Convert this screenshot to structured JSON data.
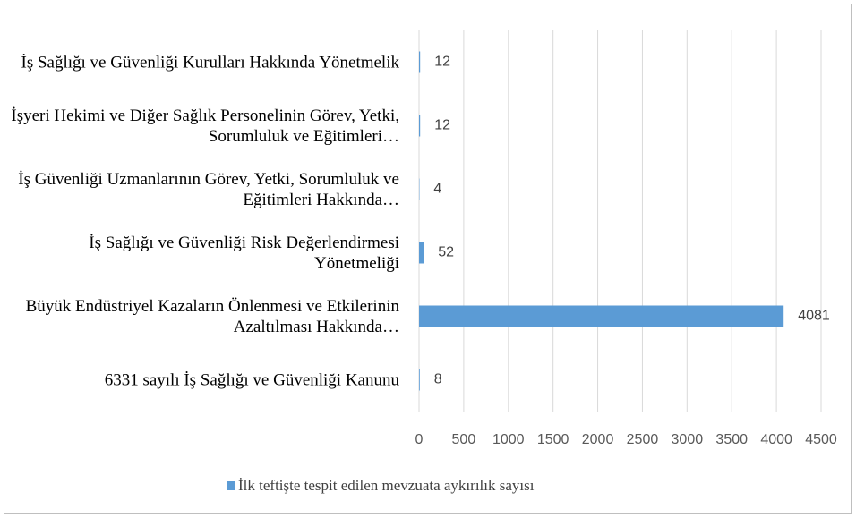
{
  "chart_data": {
    "type": "barh",
    "categories": [
      "İş Sağlığı ve Güvenliği Kurulları Hakkında Yönetmelik",
      "İşyeri Hekimi ve Diğer Sağlık Personelinin Görev, Yetki, Sorumluluk ve Eğitimleri…",
      "İş Güvenliği Uzmanlarının Görev, Yetki, Sorumluluk ve Eğitimleri Hakkında…",
      "İş Sağlığı ve Güvenliği Risk Değerlendirmesi Yönetmeliği",
      "Büyük Endüstriyel Kazaların Önlenmesi ve Etkilerinin Azaltılması Hakkında…",
      "6331 sayılı İş Sağlığı ve Güvenliği Kanunu"
    ],
    "series": [
      {
        "name": "İlk teftişte tespit edilen mevzuata aykırılık sayısı",
        "color": "#5b9bd5",
        "values": [
          12,
          12,
          4,
          52,
          4081,
          8
        ]
      }
    ],
    "xlim": [
      0,
      4500
    ],
    "xticks": [
      0,
      500,
      1000,
      1500,
      2000,
      2500,
      3000,
      3500,
      4000,
      4500
    ],
    "grid": true,
    "legend": "bottom"
  }
}
